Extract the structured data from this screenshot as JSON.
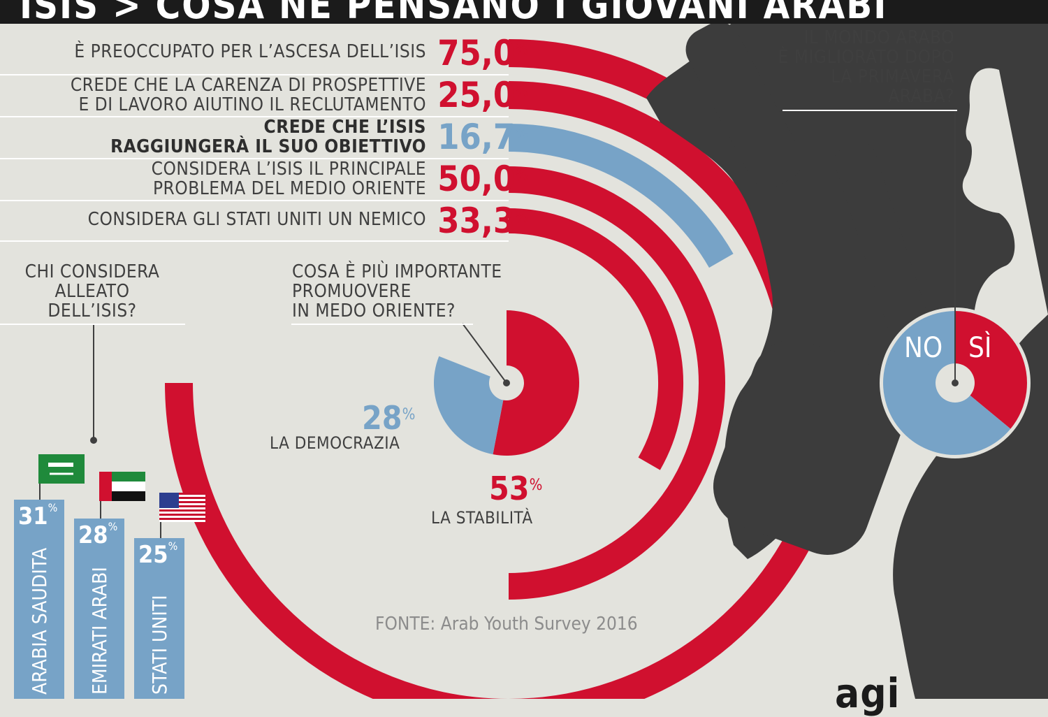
{
  "header": {
    "title": "ISIS > COSA NE PENSANO I GIOVANI ARABI"
  },
  "colors": {
    "red": "#d0102f",
    "blue": "#77a3c7",
    "dark": "#3c3c3c",
    "bg": "#e3e3dd"
  },
  "stats": [
    {
      "label_lines": [
        "È PREOCCUPATO PER L’ASCESA DELL’ISIS"
      ],
      "value": "75,0",
      "pct": "%",
      "bold": false,
      "color": "red"
    },
    {
      "label_lines": [
        "CREDE CHE LA CARENZA DI PROSPETTIVE",
        "E DI LAVORO AIUTINO IL RECLUTAMENTO"
      ],
      "value": "25,0",
      "pct": "%",
      "bold": false,
      "color": "red"
    },
    {
      "label_lines": [
        "CREDE CHE L’ISIS",
        "RAGGIUNGERÀ IL SUO OBIETTIVO"
      ],
      "value": "16,7",
      "pct": "%",
      "bold": true,
      "color": "blue"
    },
    {
      "label_lines": [
        "CONSIDERA L’ISIS IL PRINCIPALE",
        "PROBLEMA DEL MEDIO ORIENTE"
      ],
      "value": "50,0",
      "pct": "%",
      "bold": false,
      "color": "red"
    },
    {
      "label_lines": [
        "CONSIDERA GLI STATI UNITI UN NEMICO"
      ],
      "value": "33,3",
      "pct": "%",
      "bold": false,
      "color": "red"
    }
  ],
  "ally": {
    "question_lines": [
      "CHI CONSIDERA",
      "ALLEATO",
      "DELL’ISIS?"
    ],
    "bars": [
      {
        "name": "ARABIA SAUDITA",
        "value": 31,
        "label": "31",
        "flag": "saudi-flag-icon"
      },
      {
        "name": "EMIRATI ARABI",
        "value": 28,
        "label": "28",
        "flag": "uae-flag-icon"
      },
      {
        "name": "STATI UNITI",
        "value": 25,
        "label": "25",
        "flag": "usa-flag-icon"
      }
    ],
    "pct": "%"
  },
  "priority": {
    "question_lines": [
      "COSA È PIÙ IMPORTANTE",
      "PROMUOVERE",
      "IN MEDO ORIENTE?"
    ],
    "democracy": {
      "value": 28,
      "label": "28",
      "caption": "LA DEMOCRAZIA"
    },
    "stability": {
      "value": 53,
      "label": "53",
      "caption": "LA STABILITÀ"
    },
    "pct": "%"
  },
  "spring": {
    "question_lines": [
      "IL MONDO ARABO",
      "È MIGLIORATO DOPO",
      "LA PRIMAVERA",
      "ARABA?"
    ],
    "no_label": "NO",
    "yes_label": "SÌ",
    "yes_fraction": 0.36
  },
  "source": "FONTE: Arab Youth Survey 2016",
  "logo": "agi",
  "chart_data": [
    {
      "type": "bar",
      "categories": [
        "È PREOCCUPATO PER L’ASCESA DELL’ISIS",
        "CREDE CHE LA CARENZA DI PROSPETTIVE E DI LAVORO AIUTINO IL RECLUTAMENTO",
        "CREDE CHE L’ISIS RAGGIUNGERÀ IL SUO OBIETTIVO",
        "CONSIDERA L’ISIS IL PRINCIPALE PROBLEMA DEL MEDIO ORIENTE",
        "CONSIDERA GLI STATI UNITI UN NEMICO"
      ],
      "values": [
        75.0,
        25.0,
        16.7,
        50.0,
        33.3
      ],
      "unit": "%"
    },
    {
      "type": "bar",
      "title": "CHI CONSIDERA ALLEATO DELL’ISIS?",
      "categories": [
        "ARABIA SAUDITA",
        "EMIRATI ARABI",
        "STATI UNITI"
      ],
      "values": [
        31,
        28,
        25
      ],
      "unit": "%"
    },
    {
      "type": "pie",
      "title": "COSA È PIÙ IMPORTANTE PROMUOVERE IN MEDO ORIENTE?",
      "categories": [
        "LA STABILITÀ",
        "LA DEMOCRAZIA"
      ],
      "values": [
        53,
        28
      ],
      "unit": "%"
    },
    {
      "type": "pie",
      "title": "IL MONDO ARABO È MIGLIORATO DOPO LA PRIMAVERA ARABA?",
      "categories": [
        "SÌ",
        "NO"
      ],
      "values": [
        36,
        64
      ]
    }
  ]
}
